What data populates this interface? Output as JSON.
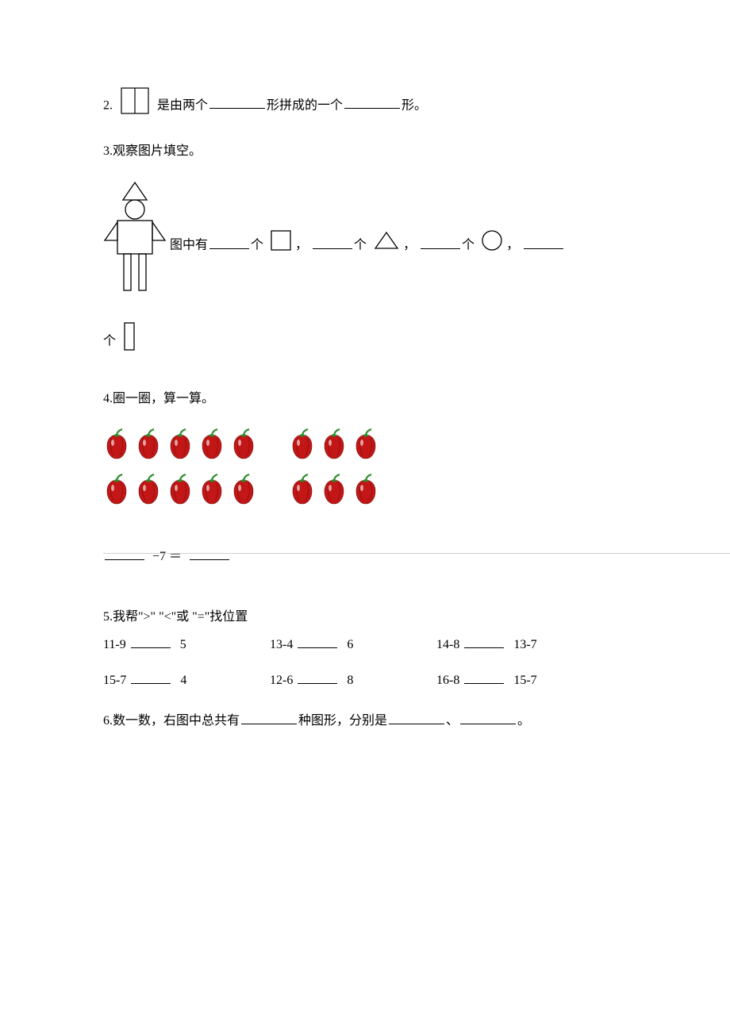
{
  "q2": {
    "num": "2.",
    "t1": "是由两个",
    "t2": "形拼成的一个",
    "t3": "形。"
  },
  "q3": {
    "num": "3.",
    "title": "观察图片填空。",
    "t1": "图中有",
    "t2": "个",
    "comma": "，",
    "period": "，"
  },
  "q4": {
    "num": "4.",
    "title": "圈一圈，算一算。",
    "expr_mid": "−7 ＝",
    "pepper_color": "#c31616",
    "stem_color": "#2e8b2e",
    "left_cols": 5,
    "right_cols": 3,
    "rows": 2
  },
  "q5": {
    "num": "5.",
    "title": "我帮\">\" \"<\"或 \"=\"找位置",
    "rows": [
      [
        {
          "left": "11-9",
          "right": "5"
        },
        {
          "left": "13-4",
          "right": "6"
        },
        {
          "left": "14-8",
          "right": "13-7"
        }
      ],
      [
        {
          "left": "15-7",
          "right": "4"
        },
        {
          "left": "12-6",
          "right": "8"
        },
        {
          "left": "16-8",
          "right": "15-7"
        }
      ]
    ]
  },
  "q6": {
    "num": "6.",
    "t1": "数一数，右图中总共有",
    "t2": "种图形，分别是",
    "t3": "、",
    "t4": "。"
  }
}
